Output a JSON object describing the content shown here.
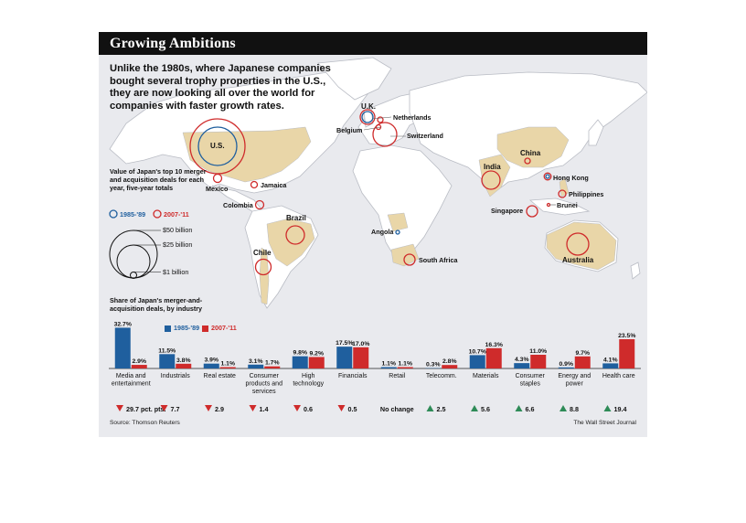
{
  "header": {
    "title": "Growing Ambitions"
  },
  "intro": "Unlike the 1980s, where Japanese companies bought several trophy properties in the U.S., they are now looking all over the world for companies with faster growth rates.",
  "colors": {
    "blue": "#1f5f9e",
    "red": "#cf2b2b",
    "highlight": "#e9d6a8",
    "land": "#ffffff",
    "water": "#e9eaee"
  },
  "map_legend": {
    "title": "Value of Japan's top 10 merger and acquisition deals for each year, five-year totals",
    "period_1": "1985-'89",
    "period_2": "2007-'11",
    "sizes": [
      "$50 billion",
      "$25 billion",
      "$1 billion"
    ]
  },
  "map_labels": {
    "us": "U.S.",
    "mexico": "Mexico",
    "jamaica": "Jamaica",
    "colombia": "Colombia",
    "brazil": "Brazil",
    "chile": "Chile",
    "uk": "U.K.",
    "netherlands": "Netherlands",
    "belgium": "Belgium",
    "switzerland": "Switzerland",
    "angola": "Angola",
    "south_africa": "South Africa",
    "india": "India",
    "china": "China",
    "hong_kong": "Hong Kong",
    "philippines": "Philippines",
    "singapore": "Singapore",
    "brunei": "Brunei",
    "australia": "Australia"
  },
  "chart_data": {
    "type": "bar",
    "title": "Share of Japan's merger-and-acquisition deals, by industry",
    "categories": [
      "Media and entertainment",
      "Industrials",
      "Real estate",
      "Consumer products and services",
      "High technology",
      "Financials",
      "Retail",
      "Telecomm.",
      "Materials",
      "Consumer staples",
      "Energy and power",
      "Health care"
    ],
    "series": [
      {
        "name": "1985-'89",
        "values": [
          32.7,
          11.5,
          3.9,
          3.1,
          9.8,
          17.5,
          1.1,
          0.3,
          10.7,
          4.3,
          0.9,
          4.1
        ],
        "labels": [
          "32.7%",
          "11.5%",
          "3.9%",
          "3.1%",
          "9.8%",
          "17.5%",
          "1.1%",
          "0.3%",
          "10.7%",
          "4.3%",
          "0.9%",
          "4.1%"
        ]
      },
      {
        "name": "2007-'11",
        "values": [
          2.9,
          3.8,
          1.1,
          1.7,
          9.2,
          17.0,
          1.1,
          2.8,
          16.3,
          11.0,
          9.7,
          23.5
        ],
        "labels": [
          "2.9%",
          "3.8%",
          "1.1%",
          "1.7%",
          "9.2%",
          "17.0%",
          "1.1%",
          "2.8%",
          "16.3%",
          "11.0%",
          "9.7%",
          "23.5%"
        ]
      }
    ],
    "changes": [
      {
        "dir": "down",
        "text": "29.7 pct. pts."
      },
      {
        "dir": "down",
        "text": "7.7"
      },
      {
        "dir": "down",
        "text": "2.9"
      },
      {
        "dir": "down",
        "text": "1.4"
      },
      {
        "dir": "down",
        "text": "0.6"
      },
      {
        "dir": "down",
        "text": "0.5"
      },
      {
        "dir": "none",
        "text": "No change"
      },
      {
        "dir": "up",
        "text": "2.5"
      },
      {
        "dir": "up",
        "text": "5.6"
      },
      {
        "dir": "up",
        "text": "6.6"
      },
      {
        "dir": "up",
        "text": "8.8"
      },
      {
        "dir": "up",
        "text": "19.4"
      }
    ],
    "ylim": [
      0,
      35
    ]
  },
  "footer": {
    "source": "Source: Thomson Reuters",
    "credit": "The Wall Street Journal"
  }
}
